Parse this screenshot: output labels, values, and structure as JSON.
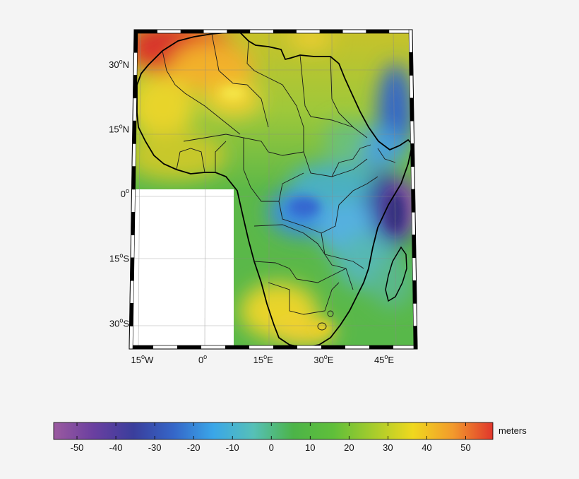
{
  "map": {
    "latitude_labels": [
      {
        "deg": "30",
        "hemi": "N",
        "lat": 30
      },
      {
        "deg": "15",
        "hemi": "N",
        "lat": 15
      },
      {
        "deg": "0",
        "hemi": "",
        "lat": 0
      },
      {
        "deg": "15",
        "hemi": "S",
        "lat": -15
      },
      {
        "deg": "30",
        "hemi": "S",
        "lat": -30
      }
    ],
    "longitude_labels": [
      {
        "deg": "15",
        "hemi": "W",
        "lon": -15
      },
      {
        "deg": "0",
        "hemi": "",
        "lon": 0
      },
      {
        "deg": "15",
        "hemi": "E",
        "lon": 15
      },
      {
        "deg": "30",
        "hemi": "E",
        "lon": 30
      },
      {
        "deg": "45",
        "hemi": "E",
        "lon": 45
      }
    ],
    "extent": {
      "lon_min": -17,
      "lon_max": 52,
      "lat_min": -36,
      "lat_max": 38
    },
    "missing_region": {
      "lon_min": -17,
      "lon_max": 7,
      "lat_min": -36,
      "lat_max": 2
    }
  },
  "colorbar": {
    "unit_label": "meters",
    "min": -56,
    "max": 57,
    "tick_values": [
      -50,
      -40,
      -30,
      -20,
      -10,
      0,
      10,
      20,
      30,
      40,
      50
    ],
    "tick_labels": [
      "-50",
      "-40",
      "-30",
      "-20",
      "-10",
      "0",
      "10",
      "20",
      "30",
      "40",
      "50"
    ],
    "colormap": [
      "#9b5aa0",
      "#6a3fa0",
      "#3a3e9c",
      "#3566c8",
      "#3aa6e8",
      "#56c0b8",
      "#4cb448",
      "#5fbf3a",
      "#a6cc2c",
      "#f0d81e",
      "#f29a2c",
      "#e0362c"
    ]
  },
  "colors": {
    "frame_black": "#000000",
    "missing_white": "#ffffff",
    "background": "#f4f4f4"
  }
}
